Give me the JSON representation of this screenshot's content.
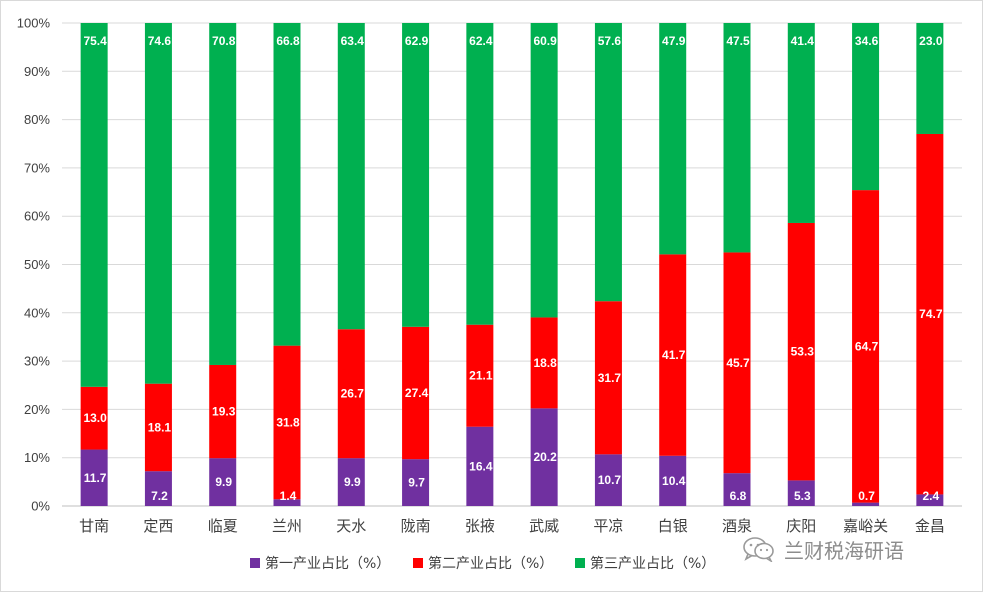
{
  "chart_data": {
    "type": "bar",
    "stacked": true,
    "percent_stacked": true,
    "categories": [
      "甘南",
      "定西",
      "临夏",
      "兰州",
      "天水",
      "陇南",
      "张掖",
      "武威",
      "平凉",
      "白银",
      "酒泉",
      "庆阳",
      "嘉峪关",
      "金昌"
    ],
    "series": [
      {
        "name": "第一产业占比（%）",
        "color": "#7030a0",
        "values": [
          11.7,
          7.2,
          9.9,
          1.4,
          9.9,
          9.7,
          16.4,
          20.2,
          10.7,
          10.4,
          6.8,
          5.3,
          0.7,
          2.4
        ]
      },
      {
        "name": "第二产业占比（%）",
        "color": "#ff0000",
        "values": [
          13.0,
          18.1,
          19.3,
          31.8,
          26.7,
          27.4,
          21.1,
          18.8,
          31.7,
          41.7,
          45.7,
          53.3,
          64.7,
          74.7
        ]
      },
      {
        "name": "第三产业占比（%）",
        "color": "#00b050",
        "values": [
          75.4,
          74.6,
          70.8,
          66.8,
          63.4,
          62.9,
          62.4,
          60.9,
          57.6,
          47.9,
          47.5,
          41.4,
          34.6,
          23.0
        ]
      }
    ],
    "y_ticks": [
      "0%",
      "10%",
      "20%",
      "30%",
      "40%",
      "50%",
      "60%",
      "70%",
      "80%",
      "90%",
      "100%"
    ],
    "ylim": [
      0,
      100
    ],
    "grid": true,
    "legend_position": "bottom",
    "title": "",
    "xlabel": "",
    "ylabel": ""
  },
  "watermark": {
    "text": "兰财税海研语",
    "icon": "wechat-icon"
  }
}
